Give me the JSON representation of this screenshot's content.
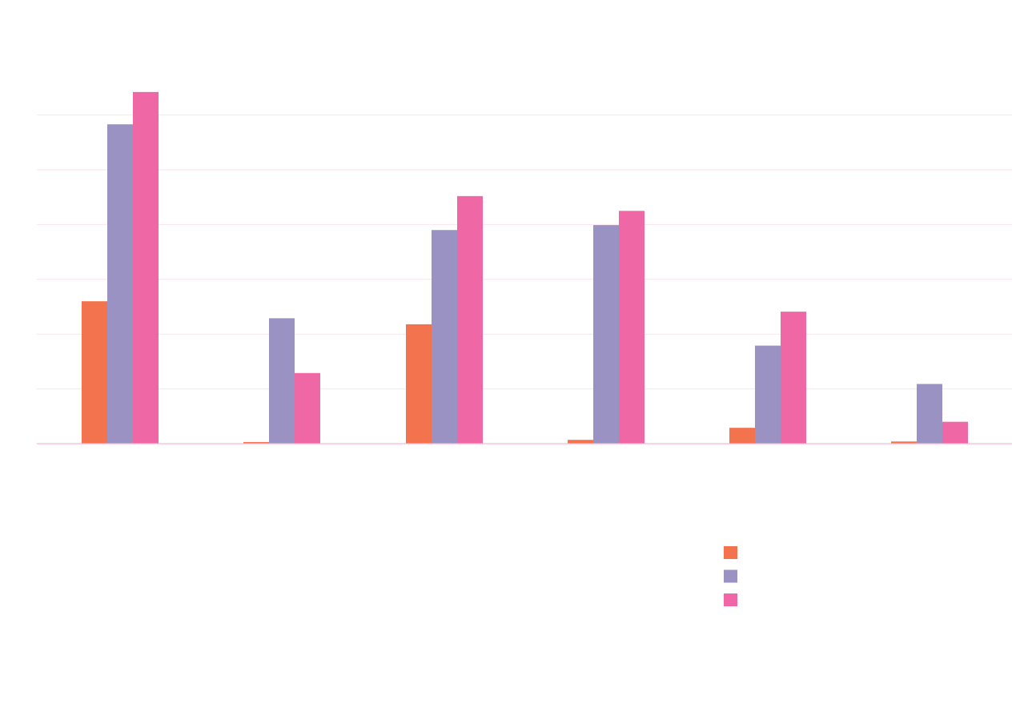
{
  "chart_data": {
    "type": "bar",
    "title": "",
    "xlabel": "",
    "ylabel": "",
    "categories": [
      "",
      "",
      "",
      "",
      "",
      ""
    ],
    "ylim": [
      0,
      6.4
    ],
    "grid": true,
    "legend_position": "bottom-right",
    "colors": [
      "#F4734F",
      "#9992C3",
      "#F067A6"
    ],
    "gridline_color": "#FBE3EE",
    "series": [
      {
        "values": [
          2.6,
          0.03,
          2.18,
          0.07,
          0.29,
          0.04
        ]
      },
      {
        "values": [
          5.83,
          2.29,
          3.9,
          3.99,
          1.79,
          1.09
        ]
      },
      {
        "values": [
          6.42,
          1.29,
          4.52,
          4.25,
          2.41,
          0.4
        ]
      }
    ]
  }
}
